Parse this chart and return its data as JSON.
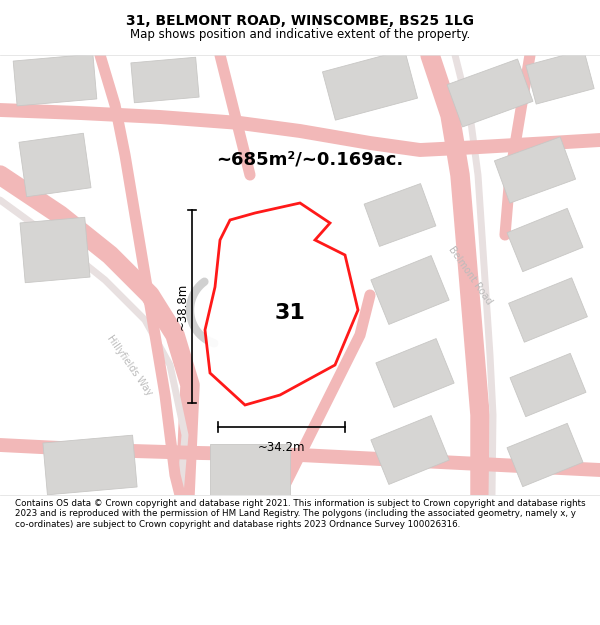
{
  "title": "31, BELMONT ROAD, WINSCOMBE, BS25 1LG",
  "subtitle": "Map shows position and indicative extent of the property.",
  "area_text": "~685m²/~0.169ac.",
  "label_31": "31",
  "dim_width": "~34.2m",
  "dim_height": "~38.8m",
  "street1": "Hillyfields Way",
  "street2": "Belmont Road",
  "footer": "Contains OS data © Crown copyright and database right 2021. This information is subject to Crown copyright and database rights 2023 and is reproduced with the permission of HM Land Registry. The polygons (including the associated geometry, namely x, y co-ordinates) are subject to Crown copyright and database rights 2023 Ordnance Survey 100026316.",
  "map_bg": "#f0efed",
  "plot_color": "#ff0000",
  "road_color": "#f2b8b8",
  "road_lw": 3.5,
  "building_fill": "#d6d5d3",
  "building_stroke": "#c8c7c5",
  "white": "#ffffff",
  "header_bg": "#ffffff",
  "footer_bg": "#ffffff",
  "text_color": "#000000",
  "street_label_color": "#bbbbbb"
}
